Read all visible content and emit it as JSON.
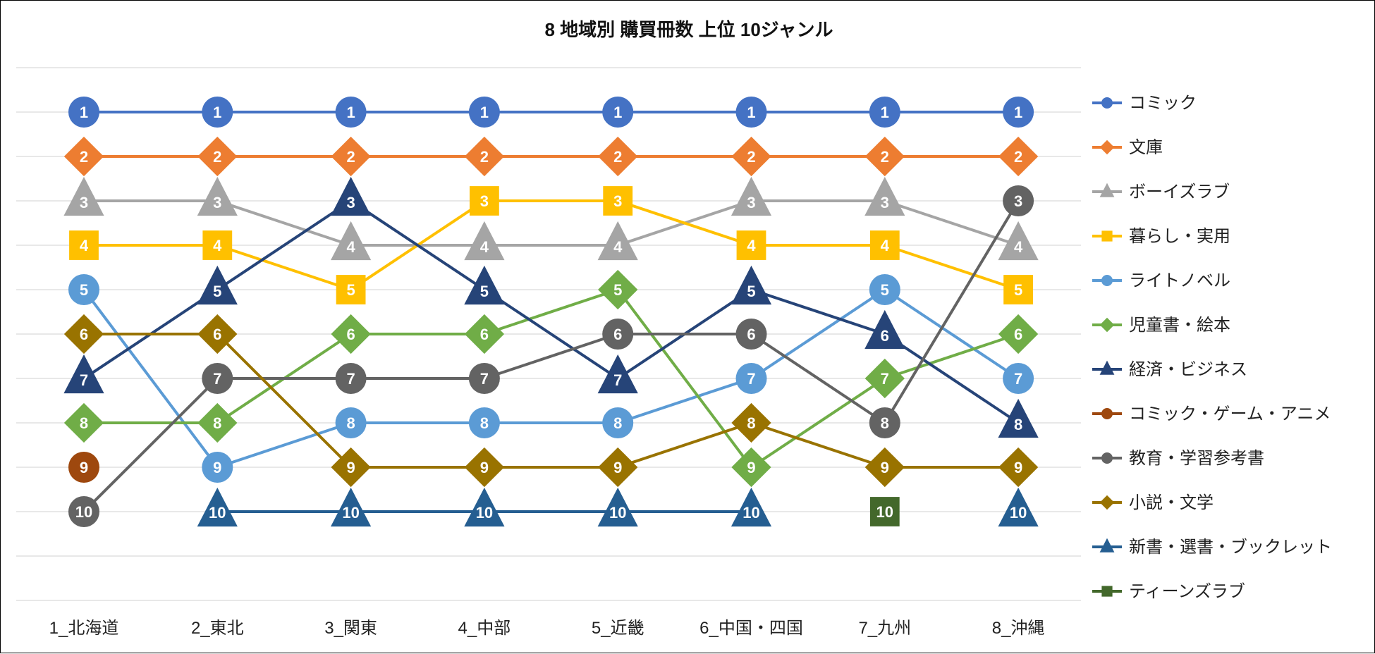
{
  "chart_data": {
    "type": "line",
    "title": "8 地域別 購買冊数 上位 10ジャンル",
    "xlabel": "",
    "ylabel": "",
    "ylim": [
      1,
      10
    ],
    "y_reversed": true,
    "grid": true,
    "legend_position": "right",
    "categories": [
      "1_北海道",
      "2_東北",
      "3_関東",
      "4_中部",
      "5_近畿",
      "6_中国・四国",
      "7_九州",
      "8_沖縄"
    ],
    "series": [
      {
        "name": "コミック",
        "color": "#4472C4",
        "marker": "circle",
        "values": [
          1,
          1,
          1,
          1,
          1,
          1,
          1,
          1
        ]
      },
      {
        "name": "文庫",
        "color": "#ED7D31",
        "marker": "diamond",
        "values": [
          2,
          2,
          2,
          2,
          2,
          2,
          2,
          2
        ]
      },
      {
        "name": "ボーイズラブ",
        "color": "#A5A5A5",
        "marker": "triangle",
        "values": [
          3,
          3,
          4,
          4,
          4,
          3,
          3,
          4
        ]
      },
      {
        "name": "暮らし・実用",
        "color": "#FFC000",
        "marker": "square",
        "values": [
          4,
          4,
          5,
          3,
          3,
          4,
          4,
          5
        ]
      },
      {
        "name": "ライトノベル",
        "color": "#5B9BD5",
        "marker": "circle",
        "values": [
          5,
          9,
          8,
          8,
          8,
          7,
          5,
          7
        ]
      },
      {
        "name": "児童書・絵本",
        "color": "#70AD47",
        "marker": "diamond",
        "values": [
          8,
          8,
          6,
          6,
          5,
          9,
          7,
          6
        ]
      },
      {
        "name": "経済・ビジネス",
        "color": "#264478",
        "marker": "triangle",
        "values": [
          7,
          5,
          3,
          5,
          7,
          5,
          6,
          8
        ]
      },
      {
        "name": "コミック・ゲーム・アニメ",
        "color": "#9E480E",
        "marker": "circle",
        "values": [
          9,
          null,
          null,
          null,
          null,
          null,
          null,
          null
        ]
      },
      {
        "name": "教育・学習参考書",
        "color": "#636363",
        "marker": "circle",
        "values": [
          10,
          7,
          7,
          7,
          6,
          6,
          8,
          3
        ]
      },
      {
        "name": "小説・文学",
        "color": "#997300",
        "marker": "diamond",
        "values": [
          6,
          6,
          9,
          9,
          9,
          8,
          9,
          9
        ]
      },
      {
        "name": "新書・選書・ブックレット",
        "color": "#255E91",
        "marker": "triangle",
        "values": [
          null,
          10,
          10,
          10,
          10,
          10,
          null,
          10
        ]
      },
      {
        "name": "ティーンズラブ",
        "color": "#43682B",
        "marker": "square",
        "values": [
          null,
          null,
          null,
          null,
          null,
          null,
          10,
          null
        ]
      }
    ]
  }
}
